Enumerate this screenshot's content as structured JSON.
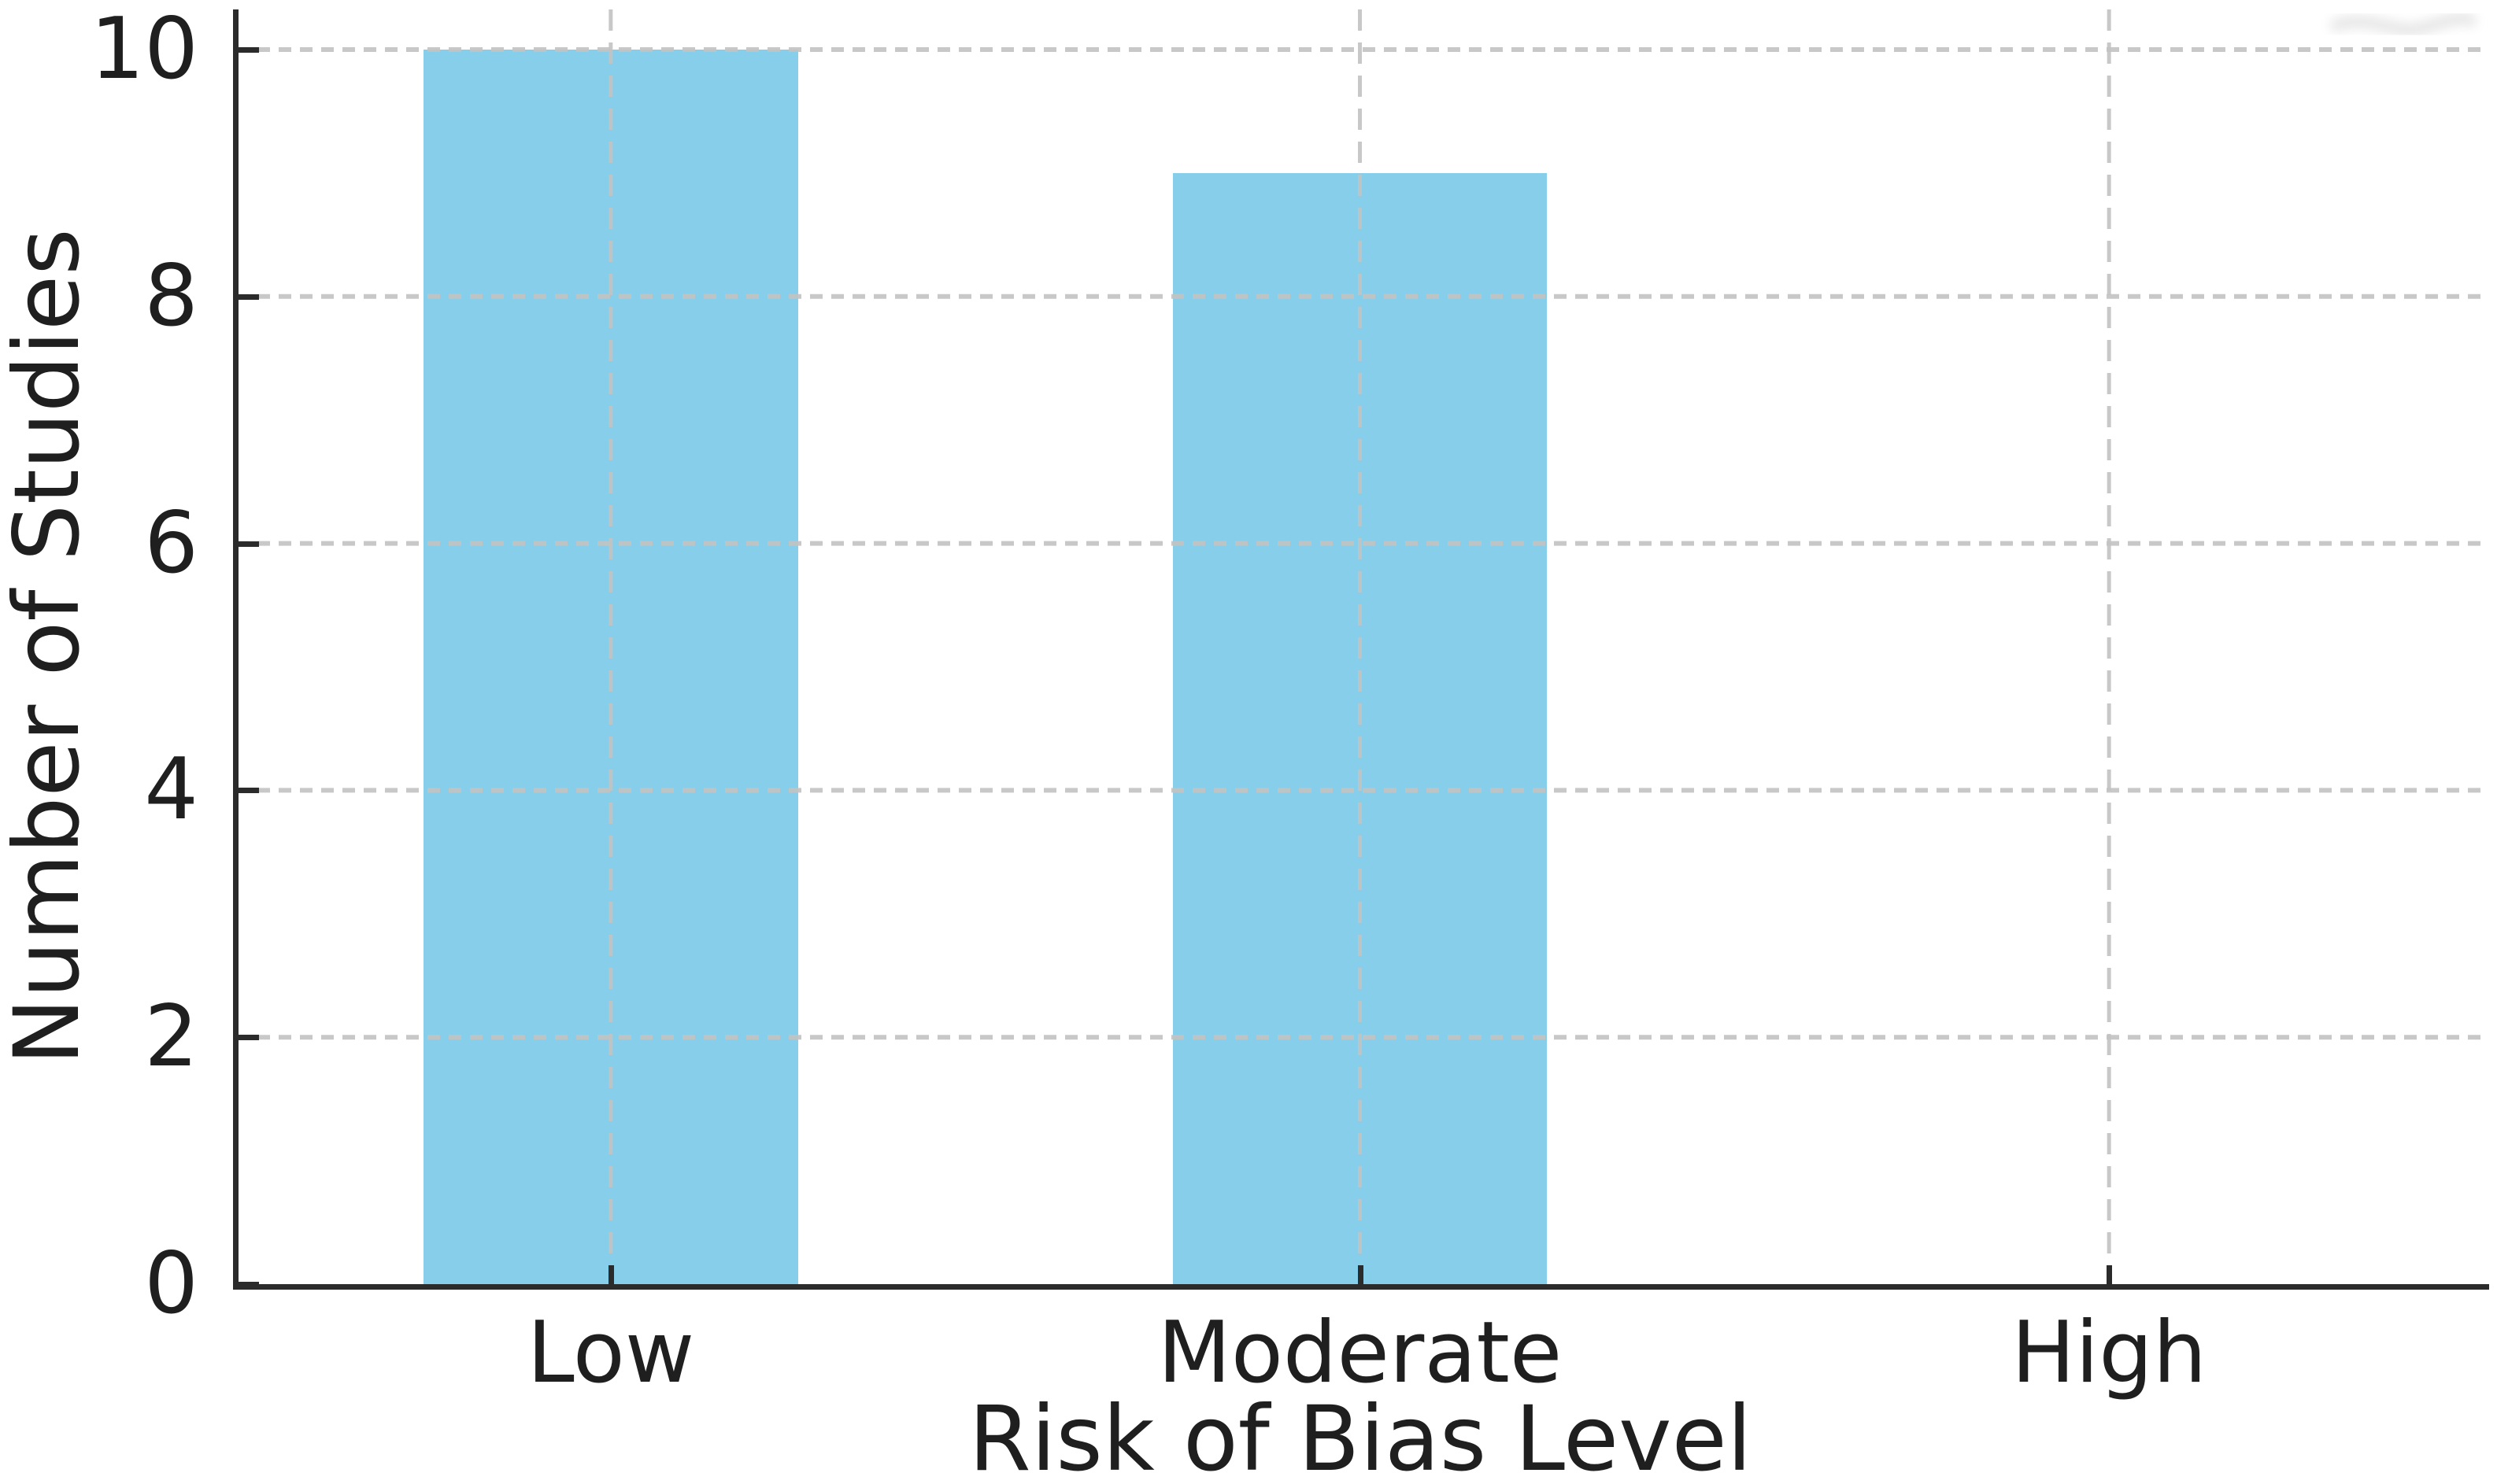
{
  "chart_data": {
    "type": "bar",
    "title": "",
    "categories": [
      "Low",
      "Moderate",
      "High"
    ],
    "values": [
      10,
      9,
      0
    ],
    "xlabel": "Risk of Bias Level",
    "ylabel": "Number of Studies",
    "yticks": [
      0,
      2,
      4,
      6,
      8,
      10
    ],
    "ylim": [
      0,
      10.3
    ],
    "xlim_categories": [
      -0.5,
      2.5
    ],
    "bar_width_fraction": 0.5,
    "grid": "dashed gridlines on both axes, drawn above bars",
    "legend": "none",
    "data_labels": "none"
  },
  "colors": {
    "bar": "#87CEEB",
    "axis": "#2b2b2b",
    "grid": "#c3c3c3",
    "text": "#1f1f1f",
    "background": "#ffffff",
    "smudge": "#e4e4e4"
  },
  "decorations": {
    "top_right_smudge": "faint gray curved smudge artifact near the top-right corner"
  }
}
